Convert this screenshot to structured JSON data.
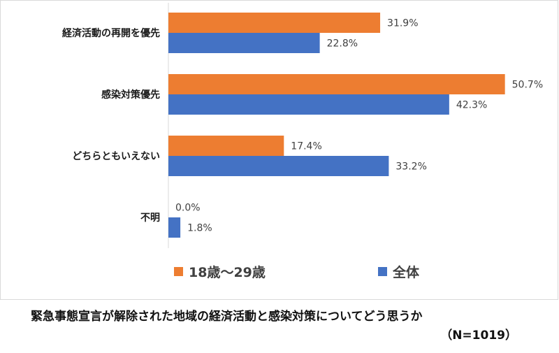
{
  "chart_data": {
    "type": "bar",
    "orientation": "horizontal",
    "categories": [
      "経済活動の再開を優先",
      "感染対策優先",
      "どちらともいえない",
      "不明"
    ],
    "series": [
      {
        "name": "18歳〜29歳",
        "values": [
          31.9,
          50.7,
          17.4,
          0.0
        ],
        "color": "#ED7D31"
      },
      {
        "name": "全体",
        "values": [
          22.8,
          42.3,
          33.2,
          1.8
        ],
        "color": "#4472C4"
      }
    ],
    "value_labels": [
      [
        "31.9%",
        "50.7%",
        "17.4%",
        "0.0%"
      ],
      [
        "22.8%",
        "42.3%",
        "33.2%",
        "1.8%"
      ]
    ],
    "xlim": [
      0,
      60
    ],
    "grid": false,
    "legend_position": "bottom"
  },
  "caption": {
    "line1": "緊急事態宣言が解除された地域の経済活動と感染対策についてどう思うか",
    "line2": "（N=1019）"
  }
}
